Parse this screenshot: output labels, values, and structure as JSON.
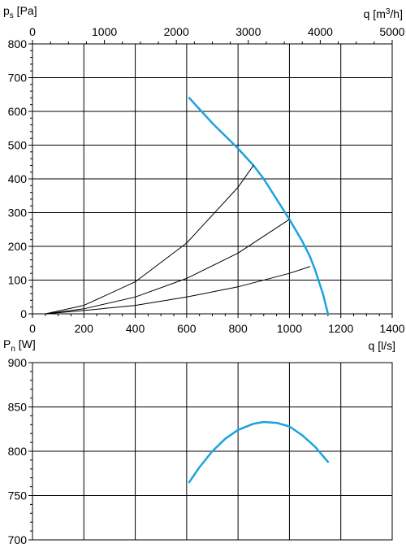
{
  "chart_data": [
    {
      "type": "line",
      "name": "pressure",
      "ylabel": {
        "main": "p",
        "sub": "s",
        "unit": " [Pa]"
      },
      "top_xlabel": {
        "main": "q [m",
        "sup": "3",
        "tail": "/h]"
      },
      "bottom_xlabel": "q [l/s]",
      "xlim": [
        0,
        1400
      ],
      "ylim": [
        0,
        800
      ],
      "top_xlim": [
        0,
        5000
      ],
      "grid": true,
      "x_ticks": [
        0,
        200,
        400,
        600,
        800,
        1000,
        1200,
        1400
      ],
      "top_x_ticks": [
        0,
        1000,
        2000,
        3000,
        4000,
        5000
      ],
      "y_ticks": [
        0,
        100,
        200,
        300,
        400,
        500,
        600,
        700,
        800
      ],
      "series": [
        {
          "x": [
            610,
            700,
            800,
            860,
            900,
            950,
            1000,
            1050,
            1080,
            1100,
            1130,
            1150
          ],
          "y": [
            640,
            565,
            490,
            440,
            400,
            340,
            280,
            215,
            170,
            130,
            60,
            0
          ],
          "color": "#1aa3e0"
        },
        {
          "x": [
            50,
            200,
            400,
            600,
            800,
            860
          ],
          "y": [
            0,
            25,
            95,
            210,
            375,
            440
          ],
          "color": "#000000"
        },
        {
          "x": [
            50,
            200,
            400,
            600,
            800,
            1000
          ],
          "y": [
            0,
            15,
            50,
            105,
            180,
            280
          ],
          "color": "#000000"
        },
        {
          "x": [
            50,
            200,
            400,
            600,
            800,
            1000,
            1080
          ],
          "y": [
            0,
            10,
            25,
            50,
            80,
            120,
            140
          ],
          "color": "#000000"
        }
      ]
    },
    {
      "type": "line",
      "name": "power",
      "ylabel": {
        "main": "P",
        "sub": "n",
        "unit": " [W]"
      },
      "xlim": [
        0,
        1400
      ],
      "ylim": [
        700,
        900
      ],
      "grid": true,
      "y_ticks": [
        700,
        750,
        800,
        850,
        900
      ],
      "series": [
        {
          "x": [
            610,
            650,
            700,
            750,
            800,
            860,
            900,
            950,
            1000,
            1050,
            1100,
            1150
          ],
          "y": [
            765,
            782,
            800,
            814,
            824,
            831,
            833,
            832,
            828,
            818,
            805,
            788
          ],
          "color": "#1aa3e0"
        }
      ]
    }
  ]
}
